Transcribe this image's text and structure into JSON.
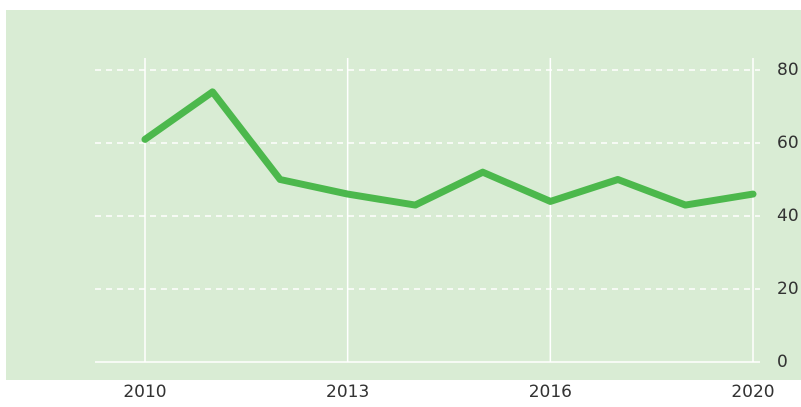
{
  "chart_data": {
    "type": "line",
    "categories": [
      "2010",
      null,
      null,
      "2013",
      null,
      null,
      "2016",
      null,
      null,
      "2020"
    ],
    "series": [
      {
        "name": null,
        "color": "#4cb84c",
        "values": [
          61,
          74,
          50,
          46,
          43,
          52,
          44,
          50,
          43,
          46
        ]
      }
    ],
    "ylim": [
      0,
      80
    ],
    "yticks": [
      0,
      20,
      40,
      60,
      80
    ],
    "grid": true,
    "y_axis_side": "right"
  }
}
